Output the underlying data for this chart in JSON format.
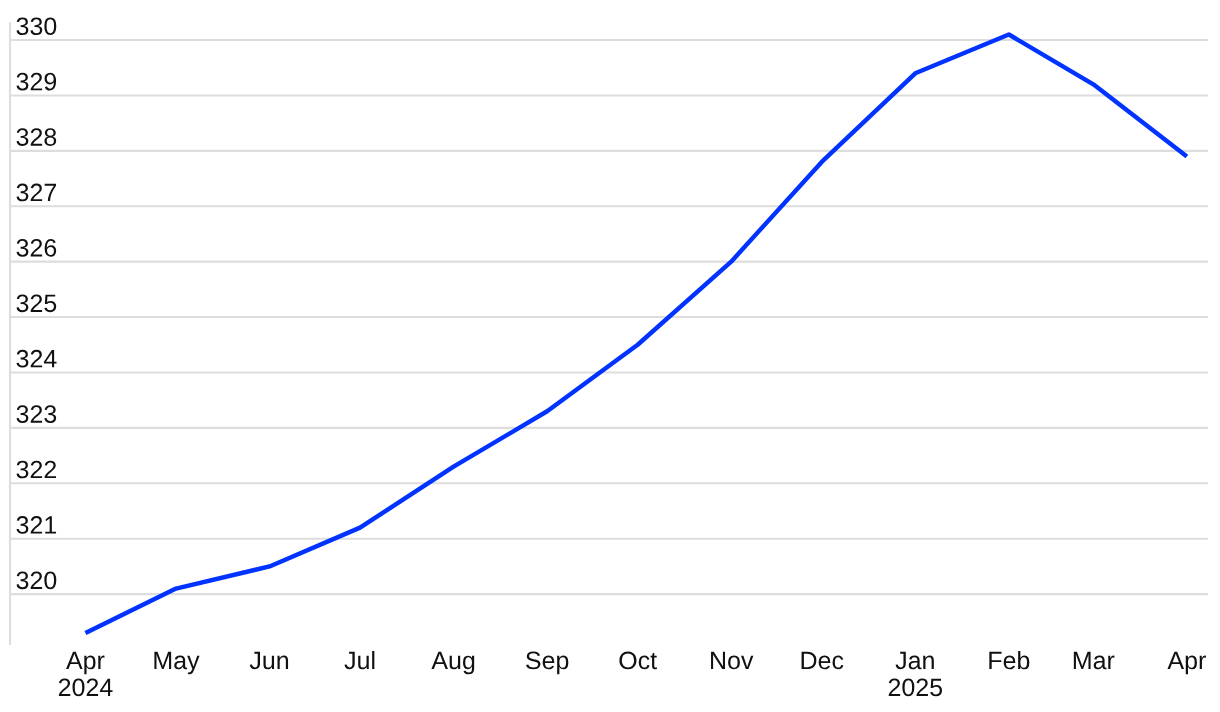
{
  "chart_data": {
    "type": "line",
    "x": [
      "2024-04",
      "2024-05",
      "2024-06",
      "2024-07",
      "2024-08",
      "2024-09",
      "2024-10",
      "2024-11",
      "2024-12",
      "2025-01",
      "2025-02",
      "2025-03",
      "2025-04"
    ],
    "series": [
      {
        "color": "#0033ff",
        "values": [
          319.3,
          320.1,
          320.5,
          321.2,
          322.3,
          323.3,
          324.5,
          326.0,
          327.8,
          329.4,
          330.1,
          329.2,
          327.9
        ]
      }
    ],
    "xlim": [
      "2024-03-07",
      "2025-04-08"
    ],
    "xticks": [
      {
        "value": "2024-04",
        "label": "Apr\n2024"
      },
      {
        "value": "2024-05",
        "label": "May"
      },
      {
        "value": "2024-06",
        "label": "Jun"
      },
      {
        "value": "2024-07",
        "label": "Jul"
      },
      {
        "value": "2024-08",
        "label": "Aug"
      },
      {
        "value": "2024-09",
        "label": "Sep"
      },
      {
        "value": "2024-10",
        "label": "Oct"
      },
      {
        "value": "2024-11",
        "label": "Nov"
      },
      {
        "value": "2024-12",
        "label": "Dec"
      },
      {
        "value": "2025-01",
        "label": "Jan\n2025"
      },
      {
        "value": "2025-02",
        "label": "Feb"
      },
      {
        "value": "2025-03",
        "label": "Mar"
      },
      {
        "value": "2025-04",
        "label": "Apr"
      }
    ],
    "ylim": [
      319.1,
      330.3
    ],
    "yticks": [
      320,
      321,
      322,
      323,
      324,
      325,
      326,
      327,
      328,
      329,
      330
    ],
    "grid": "y",
    "line_style": "solid"
  }
}
